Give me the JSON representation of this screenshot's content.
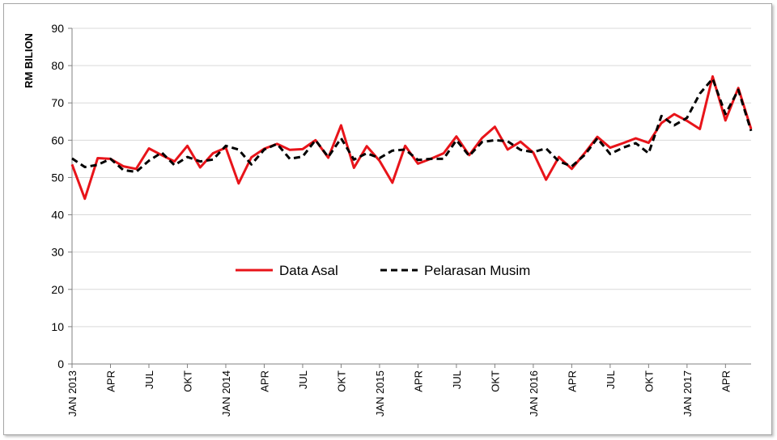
{
  "chart_data": {
    "type": "line",
    "title": "",
    "xlabel": "",
    "ylabel": "RM BILION",
    "ylim": [
      0,
      90
    ],
    "yticks": [
      0,
      10,
      20,
      30,
      40,
      50,
      60,
      70,
      80,
      90
    ],
    "grid": true,
    "legend_position": "center",
    "x_tick_labels": [
      {
        "index": 0,
        "label": "JAN 2013"
      },
      {
        "index": 3,
        "label": "APR"
      },
      {
        "index": 6,
        "label": "JUL"
      },
      {
        "index": 9,
        "label": "OKT"
      },
      {
        "index": 12,
        "label": "JAN 2014"
      },
      {
        "index": 15,
        "label": "APR"
      },
      {
        "index": 18,
        "label": "JUL"
      },
      {
        "index": 21,
        "label": "OKT"
      },
      {
        "index": 24,
        "label": "JAN 2015"
      },
      {
        "index": 27,
        "label": "APR"
      },
      {
        "index": 30,
        "label": "JUL"
      },
      {
        "index": 33,
        "label": "OKT"
      },
      {
        "index": 36,
        "label": "JAN 2016"
      },
      {
        "index": 39,
        "label": "APR"
      },
      {
        "index": 42,
        "label": "JUL"
      },
      {
        "index": 45,
        "label": "OKT"
      },
      {
        "index": 48,
        "label": "JAN 2017"
      },
      {
        "index": 51,
        "label": "APR"
      }
    ],
    "series": [
      {
        "name": "Data Asal",
        "color": "#e8141a",
        "style": "solid",
        "values": [
          53.5,
          44.3,
          55.2,
          55.0,
          53.0,
          52.3,
          57.8,
          56.0,
          54.3,
          58.5,
          52.7,
          56.5,
          58.0,
          48.4,
          55.4,
          57.7,
          59.0,
          57.4,
          57.6,
          60.0,
          55.3,
          64.0,
          52.6,
          58.4,
          54.5,
          48.6,
          58.5,
          53.7,
          55.0,
          56.5,
          61.0,
          56.0,
          60.6,
          63.6,
          57.5,
          59.6,
          56.7,
          49.4,
          55.5,
          52.3,
          56.5,
          60.9,
          58.0,
          59.2,
          60.5,
          59.3,
          64.6,
          67.0,
          65.2,
          63.0,
          77.1,
          65.3,
          74.0,
          63.0
        ]
      },
      {
        "name": "Pelarasan Musim",
        "color": "#000000",
        "style": "dashed",
        "values": [
          55.1,
          52.8,
          53.4,
          55.0,
          52.0,
          51.5,
          54.5,
          56.7,
          53.3,
          55.5,
          54.3,
          54.8,
          58.5,
          57.5,
          53.5,
          57.5,
          59.0,
          55.0,
          55.6,
          60.0,
          55.5,
          60.5,
          54.8,
          56.5,
          55.2,
          57.2,
          57.5,
          54.7,
          55.0,
          55.0,
          60.0,
          55.8,
          59.5,
          60.0,
          59.7,
          57.4,
          56.8,
          57.8,
          54.3,
          53.0,
          56.0,
          60.5,
          56.3,
          58.0,
          59.2,
          56.5,
          66.5,
          64.0,
          66.0,
          72.5,
          76.5,
          67.0,
          73.5,
          62.5
        ]
      }
    ]
  }
}
